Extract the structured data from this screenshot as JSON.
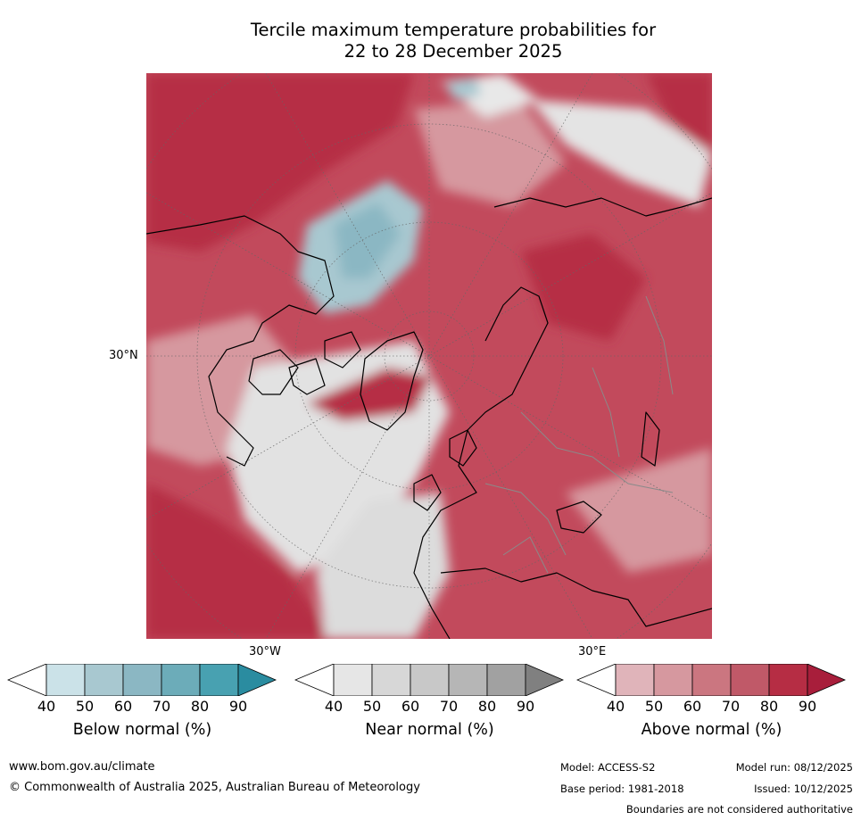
{
  "title": {
    "line1": "Tercile maximum temperature probabilities for",
    "line2": "22 to 28 December 2025"
  },
  "map": {
    "projection": "north-polar-stereographic",
    "lat_label": "30°N",
    "lon_labels": {
      "west": "30°W",
      "east": "30°E"
    }
  },
  "legends": [
    {
      "title": "Below normal (%)",
      "ticks": [
        "40",
        "50",
        "60",
        "70",
        "80",
        "90"
      ],
      "colors": [
        "#ffffff",
        "#cbe2e8",
        "#a8c8d0",
        "#8bb7c3",
        "#6cacb9",
        "#48a1b1",
        "#2a8ca0"
      ]
    },
    {
      "title": "Near normal (%)",
      "ticks": [
        "40",
        "50",
        "60",
        "70",
        "80",
        "90"
      ],
      "colors": [
        "#ffffff",
        "#e6e6e6",
        "#d7d7d7",
        "#c8c8c8",
        "#b6b6b6",
        "#a1a1a1",
        "#808080"
      ]
    },
    {
      "title": "Above normal (%)",
      "ticks": [
        "40",
        "50",
        "60",
        "70",
        "80",
        "90"
      ],
      "colors": [
        "#ffffff",
        "#e0b4ba",
        "#d6989f",
        "#cb7680",
        "#c05968",
        "#b62d44",
        "#a81e3b"
      ]
    }
  ],
  "footer": {
    "website": "www.bom.gov.au/climate",
    "copyright": "© Commonwealth of Australia 2025, Australian Bureau of Meteorology",
    "model": "Model: ACCESS-S2",
    "model_run": "Model run: 08/12/2025",
    "base_period": "Base period: 1981-2018",
    "issued": "Issued: 10/12/2025",
    "disclaimer": "Boundaries are not considered authoritative"
  }
}
